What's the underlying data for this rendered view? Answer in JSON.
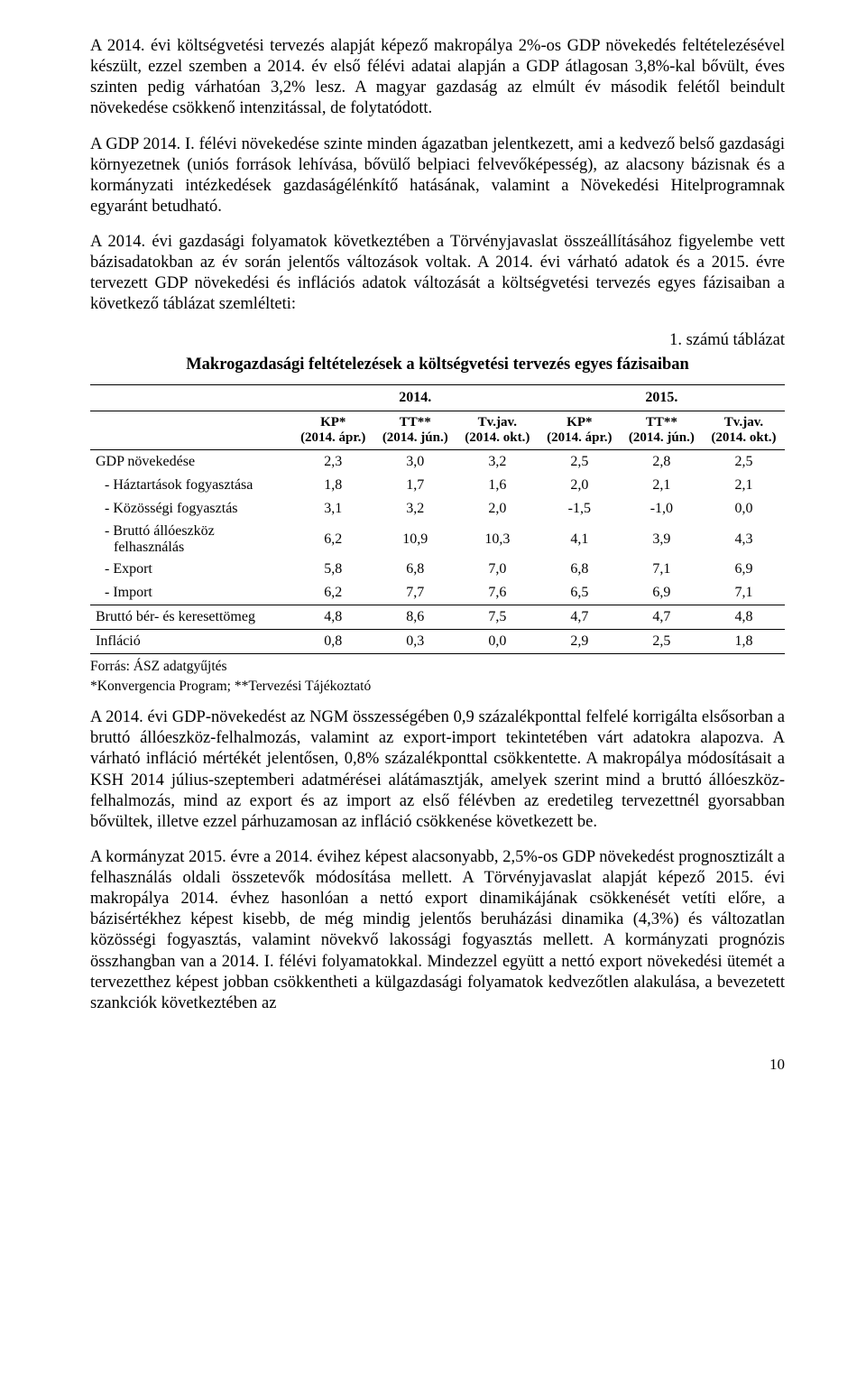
{
  "paragraphs": {
    "p1": "A 2014. évi költségvetési tervezés alapját képező makropálya 2%-os GDP növekedés feltételezésével készült, ezzel szemben a 2014. év első félévi adatai alapján a GDP átlagosan 3,8%-kal bővült, éves szinten pedig várhatóan 3,2% lesz. A magyar gazdaság az elmúlt év második felétől beindult növekedése csökkenő intenzitással, de folytatódott.",
    "p2": "A GDP 2014. I. félévi növekedése szinte minden ágazatban jelentkezett, ami a kedvező belső gazdasági környezetnek (uniós források lehívása, bővülő belpiaci felvevőképesség), az alacsony bázisnak és a kormányzati intézkedések gazdaságélénkítő hatásának, valamint a Növekedési Hitelprogramnak egyaránt betudható.",
    "p3": "A 2014. évi gazdasági folyamatok következtében a Törvényjavaslat összeállításához figyelembe vett bázisadatokban az év során jelentős változások voltak. A 2014. évi várható adatok és a 2015. évre tervezett GDP növekedési és inflációs adatok változását a költségvetési tervezés egyes fázisaiban a következő táblázat szemlélteti:",
    "p4": "A 2014. évi GDP-növekedést az NGM összességében 0,9 százalékponttal felfelé korrigálta elsősorban a bruttó állóeszköz-felhalmozás, valamint az export-import tekintetében várt adatokra alapozva. A várható infláció mértékét jelentősen, 0,8% százalékponttal csökkentette. A makropálya módosításait a KSH 2014 július-szeptemberi adatmérései alátámasztják, amelyek szerint mind a bruttó állóeszköz-felhalmozás, mind az export és az import az első félévben az eredetileg tervezettnél gyorsabban bővültek, illetve ezzel párhuzamosan az infláció csökkenése következett be.",
    "p5": "A kormányzat 2015. évre a 2014. évihez képest alacsonyabb, 2,5%-os GDP növekedést prognosztizált a felhasználás oldali összetevők módosítása mellett. A Törvényjavaslat alapját képező 2015. évi makropálya 2014. évhez hasonlóan a nettó export dinamikájának csökkenését vetíti előre, a bázisértékhez képest kisebb, de még mindig jelentős beruházási dinamika (4,3%) és változatlan közösségi fogyasztás, valamint növekvő lakossági fogyasztás mellett. A kormányzati prognózis összhangban van a 2014. I. félévi folyamatokkal. Mindezzel együtt a nettó export növekedési ütemét a tervezetthez képest jobban csökkentheti a külgazdasági folyamatok kedvezőtlen alakulása, a bevezetett szankciók következtében az"
  },
  "table_caption": "1. számú táblázat",
  "table_title": "Makrogazdasági feltételezések a költségvetési tervezés egyes fázisaiban",
  "table": {
    "year_headers": [
      "2014.",
      "2015."
    ],
    "sub_headers": [
      "KP*\n(2014. ápr.)",
      "TT**\n(2014. jún.)",
      "Tv.jav.\n(2014. okt.)",
      "KP*\n(2014. ápr.)",
      "TT**\n(2014. jún.)",
      "Tv.jav.\n(2014. okt.)"
    ],
    "rows": [
      {
        "label": "GDP növekedése",
        "vals": [
          "2,3",
          "3,0",
          "3,2",
          "2,5",
          "2,8",
          "2,5"
        ],
        "sep_above": true,
        "indent": false
      },
      {
        "label": "- Háztartások fogyasztása",
        "vals": [
          "1,8",
          "1,7",
          "1,6",
          "2,0",
          "2,1",
          "2,1"
        ],
        "indent": true
      },
      {
        "label": "- Közösségi fogyasztás",
        "vals": [
          "3,1",
          "3,2",
          "2,0",
          "-1,5",
          "-1,0",
          "0,0"
        ],
        "indent": true
      },
      {
        "label": "- Bruttó állóeszköz felhasználás",
        "vals": [
          "6,2",
          "10,9",
          "10,3",
          "4,1",
          "3,9",
          "4,3"
        ],
        "indent": true,
        "multi": true
      },
      {
        "label": "- Export",
        "vals": [
          "5,8",
          "6,8",
          "7,0",
          "6,8",
          "7,1",
          "6,9"
        ],
        "indent": true
      },
      {
        "label": "- Import",
        "vals": [
          "6,2",
          "7,7",
          "7,6",
          "6,5",
          "6,9",
          "7,1"
        ],
        "indent": true
      },
      {
        "label": "Bruttó bér- és keresettömeg",
        "vals": [
          "4,8",
          "8,6",
          "7,5",
          "4,7",
          "4,7",
          "4,8"
        ],
        "sep_above": true
      },
      {
        "label": "Infláció",
        "vals": [
          "0,8",
          "0,3",
          "0,0",
          "2,9",
          "2,5",
          "1,8"
        ],
        "sep_above": true,
        "sep_bottom": true
      }
    ],
    "col_widths": [
      "29%",
      "11.8%",
      "11.8%",
      "11.8%",
      "11.8%",
      "11.8%",
      "11.8%"
    ]
  },
  "footnotes": {
    "f1": "Forrás: ÁSZ adatgyűjtés",
    "f2": "*Konvergencia Program; **Tervezési Tájékoztató"
  },
  "page_number": "10",
  "colors": {
    "text": "#000000",
    "background": "#ffffff",
    "rule": "#000000"
  },
  "typography": {
    "body_font": "Times New Roman",
    "body_size_pt": 12,
    "table_size_pt": 10.5,
    "foot_size_pt": 10
  }
}
